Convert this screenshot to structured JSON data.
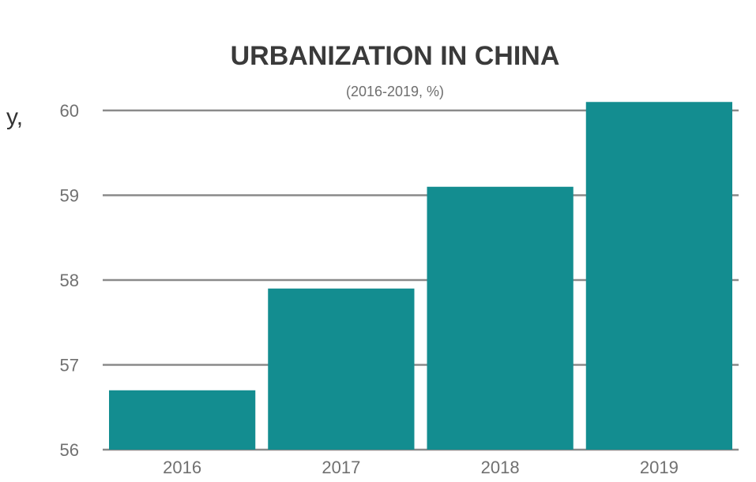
{
  "chart_data": {
    "type": "bar",
    "title": "URBANIZATION IN CHINA",
    "subtitle": "(2016-2019, %)",
    "categories": [
      "2016",
      "2017",
      "2018",
      "2019"
    ],
    "values": [
      56.7,
      57.9,
      59.1,
      60.1
    ],
    "ylim": [
      56,
      60
    ],
    "yticks": [
      56,
      57,
      58,
      59,
      60
    ],
    "ytick_labels": [
      "56",
      "57",
      "58",
      "59",
      "60"
    ],
    "xlabel": "",
    "ylabel": "",
    "grid": true,
    "legend": "none",
    "bar_color": "#138d90",
    "grid_color": "#8a8a8a"
  },
  "side_mark": "y,"
}
